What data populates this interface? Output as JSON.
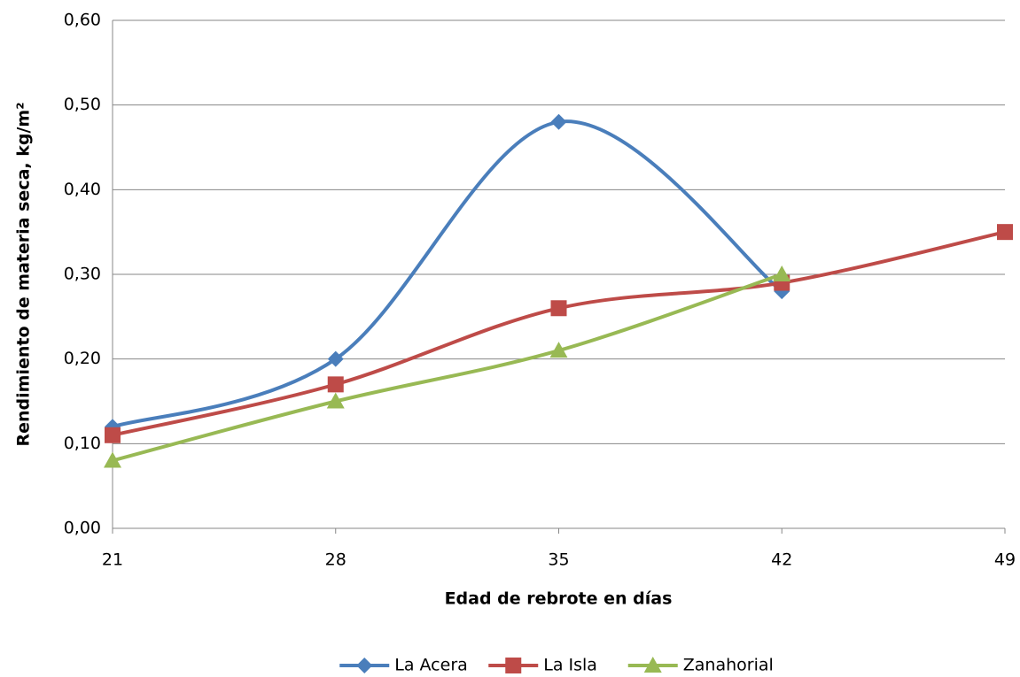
{
  "chart_data": {
    "type": "line",
    "x_label": "Edad de rebrote en días",
    "y_label": "Rendimiento de materia seca, kg/m²",
    "x": [
      21,
      28,
      35,
      42,
      49
    ],
    "xlim": [
      21,
      49
    ],
    "xticks": [
      21,
      28,
      35,
      42,
      49
    ],
    "ylim": [
      0,
      0.6
    ],
    "yticks": [
      {
        "value": 0,
        "label": "0,00"
      },
      {
        "value": 0.1,
        "label": "0,10"
      },
      {
        "value": 0.2,
        "label": "0,20"
      },
      {
        "value": 0.3,
        "label": "0,30"
      },
      {
        "value": 0.4,
        "label": "0,40"
      },
      {
        "value": 0.5,
        "label": "0,50"
      },
      {
        "value": 0.6,
        "label": "0,60"
      }
    ],
    "grid": true,
    "smooth": true,
    "legend": "bottom",
    "series": [
      {
        "name": "La Acera",
        "color": "#4a7ebb",
        "marker": "diamond",
        "values": [
          0.12,
          0.2,
          0.48,
          0.28,
          null
        ]
      },
      {
        "name": "La Isla",
        "color": "#be4b48",
        "marker": "square",
        "values": [
          0.11,
          0.17,
          0.26,
          0.29,
          0.35
        ]
      },
      {
        "name": "Zanahorial",
        "color": "#98b954",
        "marker": "triangle",
        "values": [
          0.08,
          0.15,
          0.21,
          0.3,
          null
        ]
      }
    ]
  }
}
